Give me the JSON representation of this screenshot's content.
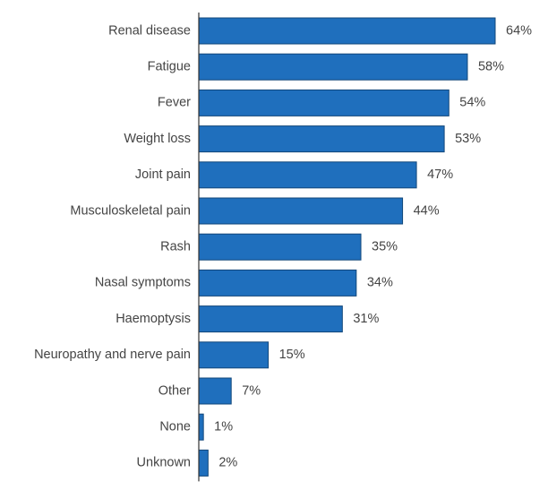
{
  "chart_data": {
    "type": "bar",
    "orientation": "horizontal",
    "categories": [
      "Renal disease",
      "Fatigue",
      "Fever",
      "Weight loss",
      "Joint pain",
      "Musculoskeletal pain",
      "Rash",
      "Nasal symptoms",
      "Haemoptysis",
      "Neuropathy and nerve pain",
      "Other",
      "None",
      "Unknown"
    ],
    "values": [
      64,
      58,
      54,
      53,
      47,
      44,
      35,
      34,
      31,
      15,
      7,
      1,
      2
    ],
    "value_labels": [
      "64%",
      "58%",
      "54%",
      "53%",
      "47%",
      "44%",
      "35%",
      "34%",
      "31%",
      "15%",
      "7%",
      "1%",
      "2%"
    ],
    "unit": "%",
    "title": "",
    "xlabel": "",
    "ylabel": "",
    "xlim": [
      0,
      64
    ],
    "grid": false,
    "legend": "none",
    "bar_color": "#1f6fbd",
    "bar_stroke": "#12477a",
    "axis_color": "#333333"
  }
}
